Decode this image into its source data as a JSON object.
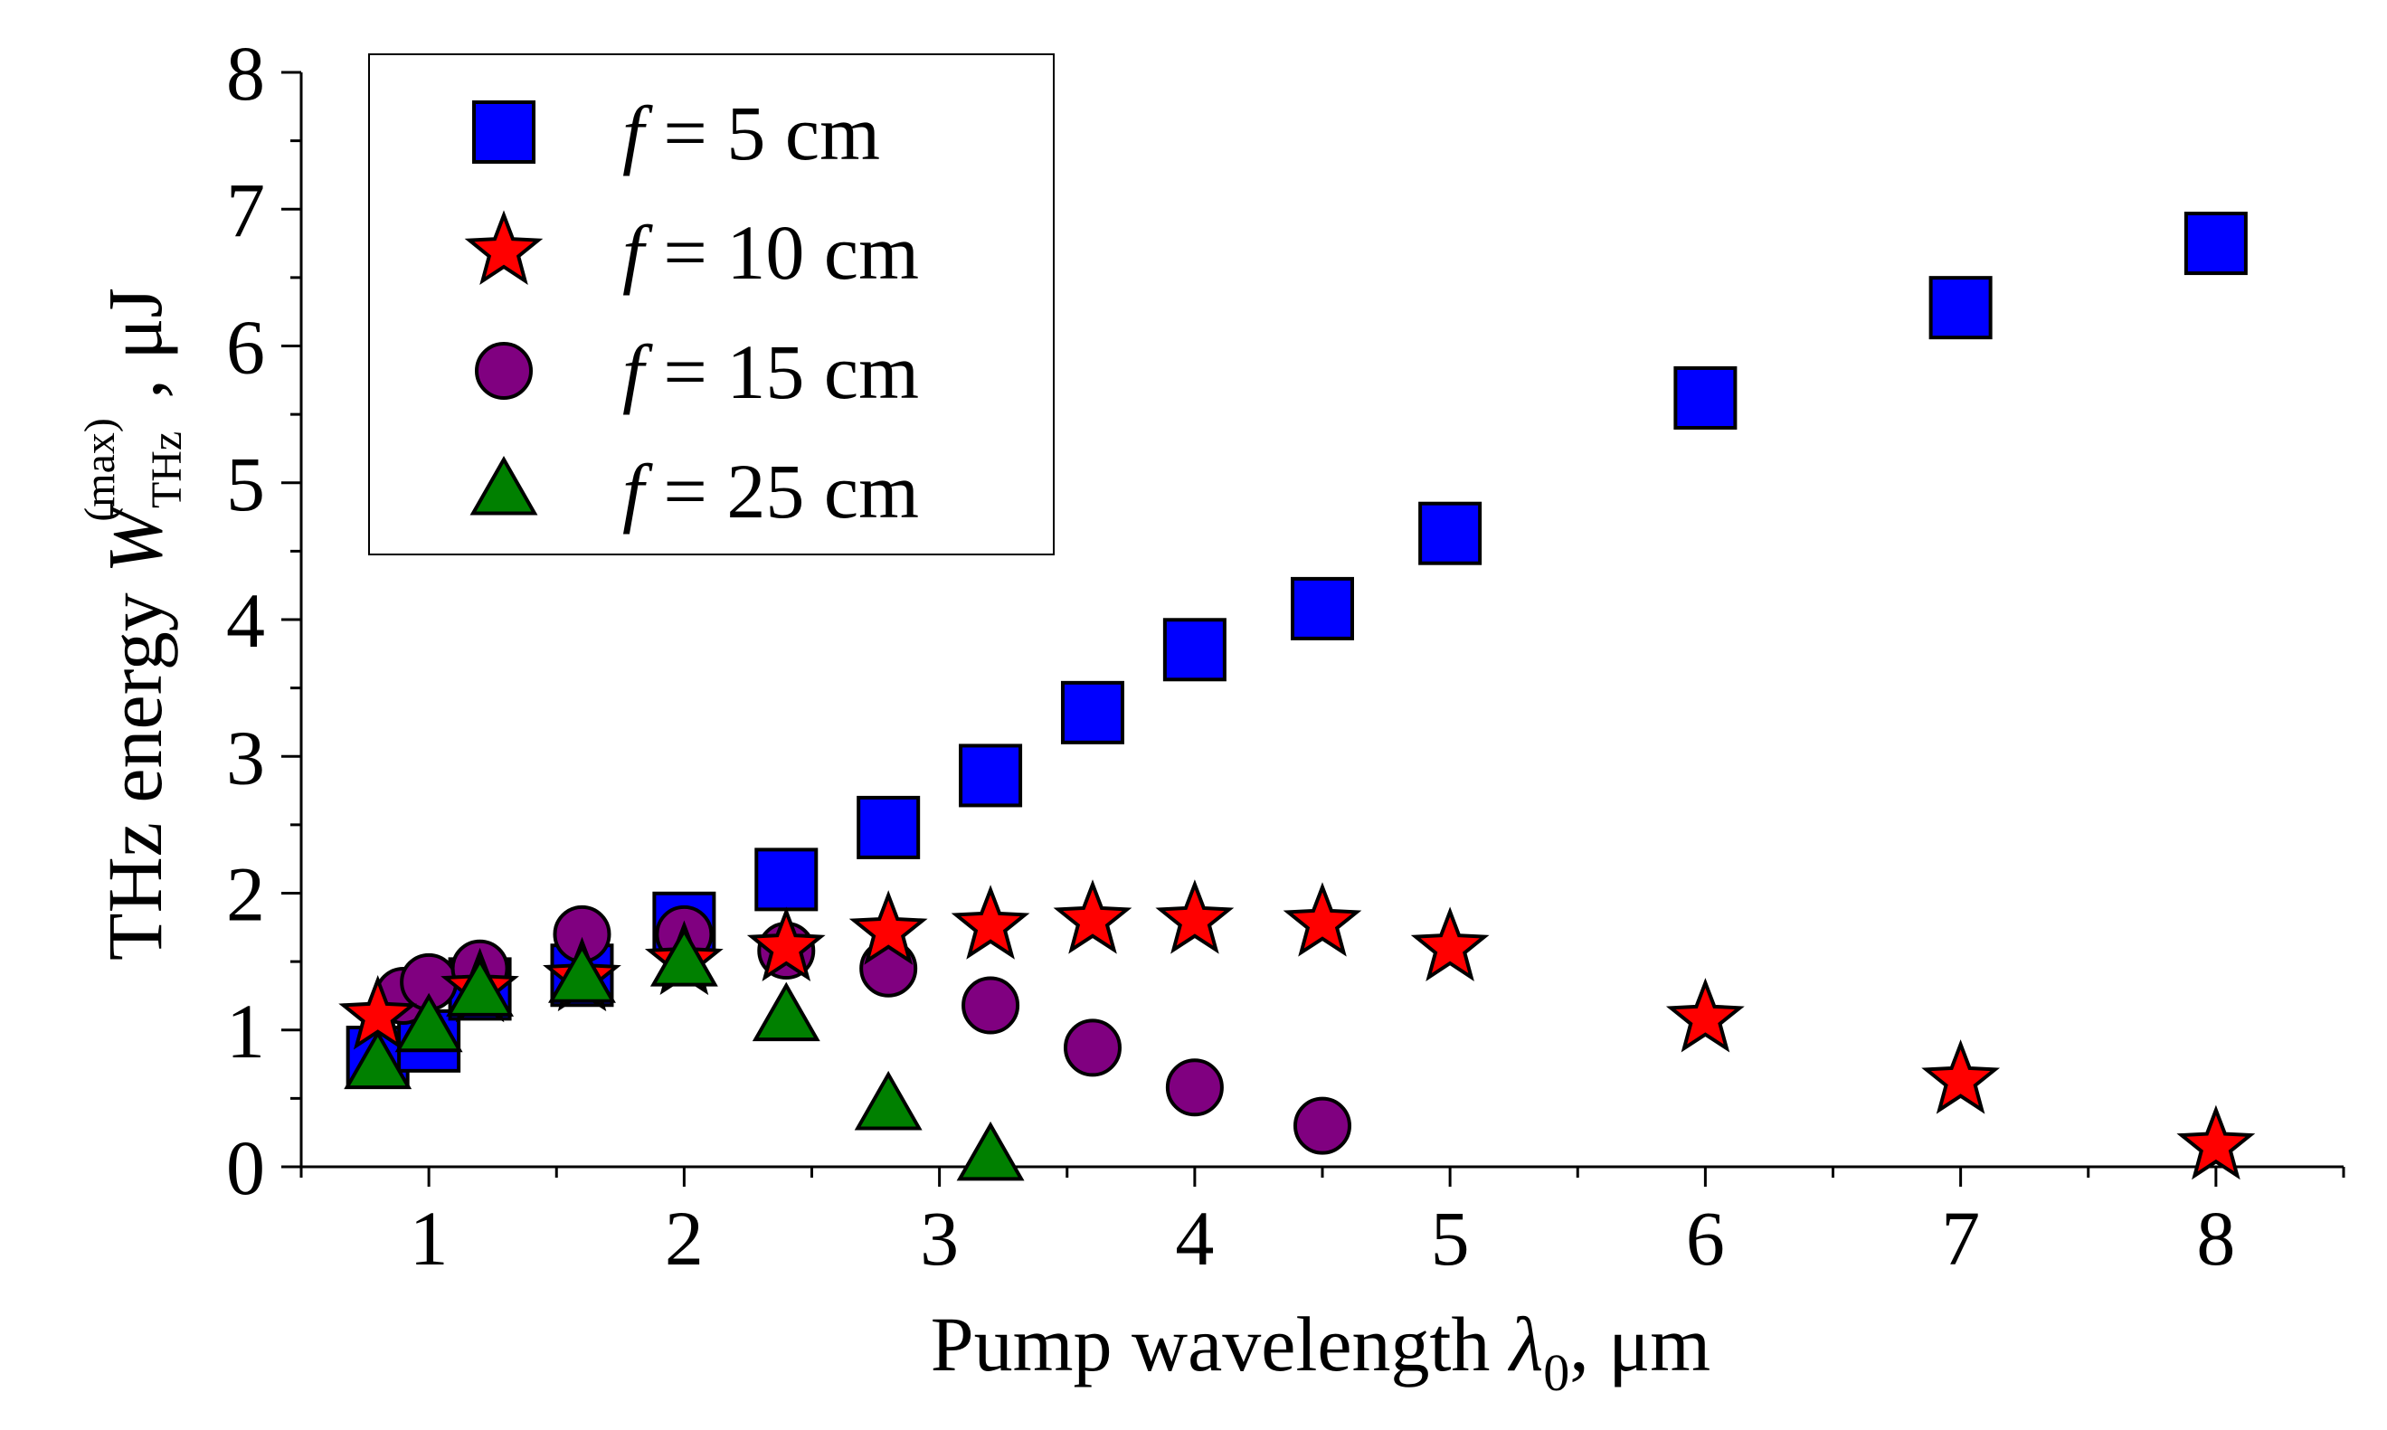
{
  "chart_data": {
    "type": "scatter",
    "xlabel": {
      "main": "Pump wavelength ",
      "symbol": "λ",
      "sub": "0",
      "unit": ", μm"
    },
    "ylabel": {
      "main": "THz energy ",
      "symbol": "W",
      "sub": "THz",
      "sup": "(max)",
      "unit": " , μJ"
    },
    "xlim": [
      0.5,
      8.5
    ],
    "ylim": [
      0,
      8
    ],
    "x_ticks": [
      1,
      2,
      3,
      4,
      5,
      6,
      7,
      8
    ],
    "y_ticks": [
      0,
      1,
      2,
      3,
      4,
      5,
      6,
      7,
      8
    ],
    "grid": false,
    "legend_position": "top-left",
    "series": [
      {
        "name": "f = 5 cm",
        "name_var": "f",
        "name_rest": " = 5 cm",
        "marker": "square",
        "color": "#0000ff",
        "x": [
          0.8,
          1.0,
          1.2,
          1.6,
          2.0,
          2.4,
          2.8,
          3.2,
          3.6,
          4.0,
          4.5,
          5.0,
          6.0,
          7.0,
          8.0
        ],
        "y": [
          0.8,
          0.92,
          1.3,
          1.4,
          1.78,
          2.1,
          2.48,
          2.86,
          3.32,
          3.78,
          4.08,
          4.63,
          5.62,
          6.28,
          6.75
        ]
      },
      {
        "name": "f = 10 cm",
        "name_var": "f",
        "name_rest": " = 10 cm",
        "marker": "star",
        "color": "#ff0000",
        "x": [
          0.8,
          1.2,
          1.6,
          2.0,
          2.4,
          2.8,
          3.2,
          3.6,
          4.0,
          4.5,
          5.0,
          6.0,
          7.0,
          8.0
        ],
        "y": [
          1.1,
          1.3,
          1.38,
          1.5,
          1.6,
          1.72,
          1.76,
          1.8,
          1.8,
          1.78,
          1.6,
          1.08,
          0.63,
          0.15
        ]
      },
      {
        "name": "f = 15 cm",
        "name_var": "f",
        "name_rest": " = 15 cm",
        "marker": "circle",
        "color": "#800080",
        "x": [
          0.9,
          1.0,
          1.2,
          1.6,
          2.0,
          2.4,
          2.8,
          3.2,
          3.6,
          4.0,
          4.5
        ],
        "y": [
          1.25,
          1.35,
          1.45,
          1.7,
          1.7,
          1.58,
          1.45,
          1.18,
          0.87,
          0.58,
          0.3
        ]
      },
      {
        "name": "f = 25 cm",
        "name_var": "f",
        "name_rest": " = 25 cm",
        "marker": "triangle",
        "color": "#008000",
        "x": [
          0.8,
          1.0,
          1.2,
          1.6,
          2.0,
          2.4,
          2.8,
          3.2
        ],
        "y": [
          0.75,
          1.02,
          1.28,
          1.38,
          1.5,
          1.1,
          0.45,
          0.08
        ]
      }
    ]
  }
}
